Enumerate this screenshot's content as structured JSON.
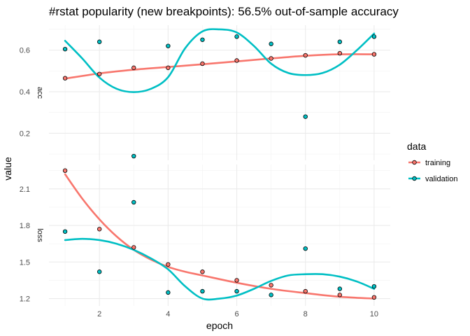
{
  "chart_data": {
    "type": "line",
    "title": "#rstat popularity (new breakpoints): 56.5% out-of-sample accuracy",
    "xlabel": "epoch",
    "ylabel": "value",
    "x_ticks": [
      "2",
      "4",
      "6",
      "8",
      "10"
    ],
    "grid": true,
    "legend": {
      "title": "data",
      "position": "right",
      "entries": [
        "training",
        "validation"
      ]
    },
    "colors": {
      "training": "#F8766D",
      "validation": "#00BFC4"
    },
    "panels": [
      {
        "strip_label": "acc",
        "ylim": [
          0.07,
          0.72
        ],
        "y_ticks": [
          "0.2",
          "0.4",
          "0.6"
        ],
        "series": [
          {
            "name": "training",
            "x": [
              1,
              2,
              3,
              4,
              5,
              6,
              7,
              8,
              9,
              10
            ],
            "values": [
              0.465,
              0.485,
              0.515,
              0.515,
              0.535,
              0.55,
              0.56,
              0.575,
              0.585,
              0.58
            ],
            "smooth": [
              [
                1,
                0.463
              ],
              [
                2,
                0.488
              ],
              [
                3,
                0.506
              ],
              [
                4,
                0.519
              ],
              [
                5,
                0.532
              ],
              [
                6,
                0.546
              ],
              [
                7,
                0.56
              ],
              [
                8,
                0.573
              ],
              [
                9,
                0.58
              ],
              [
                10,
                0.58
              ]
            ]
          },
          {
            "name": "validation",
            "x": [
              1,
              2,
              3,
              4,
              5,
              6,
              7,
              8,
              9,
              10
            ],
            "values": [
              0.605,
              0.64,
              0.09,
              0.62,
              0.65,
              0.665,
              0.63,
              0.28,
              0.64,
              0.665
            ],
            "smooth": [
              [
                1,
                0.645
              ],
              [
                1.5,
                0.56
              ],
              [
                2,
                0.468
              ],
              [
                2.5,
                0.414
              ],
              [
                3,
                0.398
              ],
              [
                3.5,
                0.414
              ],
              [
                4,
                0.47
              ],
              [
                4.5,
                0.61
              ],
              [
                5,
                0.69
              ],
              [
                5.5,
                0.7
              ],
              [
                6,
                0.685
              ],
              [
                6.5,
                0.62
              ],
              [
                7,
                0.535
              ],
              [
                7.5,
                0.49
              ],
              [
                8,
                0.48
              ],
              [
                8.5,
                0.49
              ],
              [
                9,
                0.53
              ],
              [
                9.5,
                0.6
              ],
              [
                10,
                0.68
              ]
            ]
          }
        ]
      },
      {
        "strip_label": "loss",
        "ylim": [
          1.14,
          2.3
        ],
        "y_ticks": [
          "1.2",
          "1.5",
          "1.8",
          "2.1"
        ],
        "series": [
          {
            "name": "training",
            "x": [
              1,
              2,
              3,
              4,
              5,
              6,
              7,
              8,
              9,
              10
            ],
            "values": [
              2.25,
              1.77,
              1.62,
              1.48,
              1.42,
              1.35,
              1.31,
              1.26,
              1.23,
              1.21
            ],
            "smooth": [
              [
                1,
                2.22
              ],
              [
                1.5,
                2.02
              ],
              [
                2,
                1.85
              ],
              [
                2.5,
                1.71
              ],
              [
                3,
                1.6
              ],
              [
                3.5,
                1.52
              ],
              [
                4,
                1.46
              ],
              [
                4.5,
                1.42
              ],
              [
                5,
                1.39
              ],
              [
                6,
                1.33
              ],
              [
                7,
                1.28
              ],
              [
                8,
                1.245
              ],
              [
                9,
                1.215
              ],
              [
                10,
                1.2
              ]
            ]
          },
          {
            "name": "validation",
            "x": [
              1,
              2,
              3,
              4,
              5,
              6,
              7,
              8,
              9,
              10
            ],
            "values": [
              1.75,
              1.42,
              1.99,
              1.25,
              1.26,
              1.26,
              1.23,
              1.61,
              1.28,
              1.3
            ],
            "smooth": [
              [
                1,
                1.68
              ],
              [
                1.5,
                1.69
              ],
              [
                2,
                1.68
              ],
              [
                2.5,
                1.65
              ],
              [
                3,
                1.6
              ],
              [
                3.5,
                1.53
              ],
              [
                4,
                1.44
              ],
              [
                4.5,
                1.3
              ],
              [
                5,
                1.2
              ],
              [
                5.5,
                1.2
              ],
              [
                6,
                1.225
              ],
              [
                6.5,
                1.28
              ],
              [
                7,
                1.345
              ],
              [
                7.5,
                1.39
              ],
              [
                8,
                1.4
              ],
              [
                8.5,
                1.4
              ],
              [
                9,
                1.38
              ],
              [
                9.5,
                1.34
              ],
              [
                10,
                1.28
              ]
            ]
          }
        ]
      }
    ]
  }
}
